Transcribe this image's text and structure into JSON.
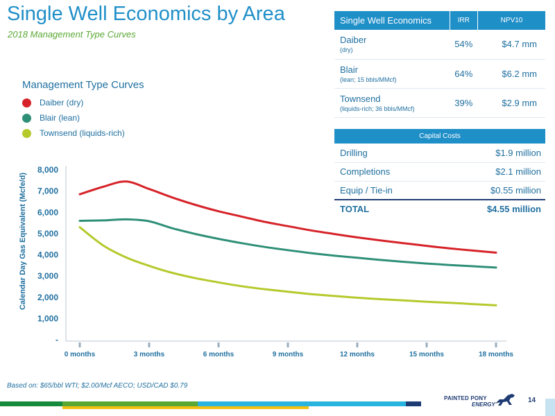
{
  "header": {
    "title": "Single Well Economics by Area",
    "subtitle": "2018 Management Type Curves"
  },
  "legend": {
    "title": "Management Type Curves",
    "items": [
      {
        "label": "Daiber (dry)",
        "color": "#d62228"
      },
      {
        "label": "Blair (lean)",
        "color": "#2e8f77"
      },
      {
        "label": "Townsend (liquids-rich)",
        "color": "#b5c92b"
      }
    ]
  },
  "economics_table": {
    "headers": [
      "Single Well Economics",
      "IRR",
      "NPV10"
    ],
    "rows": [
      {
        "area": "Daiber",
        "note": "(dry)",
        "irr": "54%",
        "npv": "$4.7 mm"
      },
      {
        "area": "Blair",
        "note": "(lean; 15 bbls/MMcf)",
        "irr": "64%",
        "npv": "$6.2 mm"
      },
      {
        "area": "Townsend",
        "note": "(liquids-rich; 36 bbls/MMcf)",
        "irr": "39%",
        "npv": "$2.9 mm"
      }
    ]
  },
  "capital_costs": {
    "header": "Capital Costs",
    "rows": [
      {
        "label": "Drilling",
        "value": "$1.9 million"
      },
      {
        "label": "Completions",
        "value": "$2.1 million"
      },
      {
        "label": "Equip / Tie-in",
        "value": "$0.55 million"
      }
    ],
    "total": {
      "label": "TOTAL",
      "value": "$4.55 million"
    }
  },
  "chart_data": {
    "type": "line",
    "title": "",
    "xlabel": "",
    "ylabel": "Calendar Day Gas Equivalent (Mcfe/d)",
    "xlim": [
      0,
      18
    ],
    "ylim": [
      0,
      8000
    ],
    "yticks": [
      0,
      1000,
      2000,
      3000,
      4000,
      5000,
      6000,
      7000,
      8000
    ],
    "ytick_labels": [
      "-",
      "1,000",
      "2,000",
      "3,000",
      "4,000",
      "5,000",
      "6,000",
      "7,000",
      "8,000"
    ],
    "xticks": [
      0,
      3,
      6,
      9,
      12,
      15,
      18
    ],
    "xtick_labels": [
      "0 months",
      "3 months",
      "6 months",
      "9 months",
      "12 months",
      "15 months",
      "18 months"
    ],
    "grid": false,
    "x": [
      0,
      1,
      2,
      3,
      4,
      5,
      6,
      7,
      8,
      9,
      10,
      11,
      12,
      13,
      14,
      15,
      16,
      17,
      18
    ],
    "series": [
      {
        "name": "Daiber (dry)",
        "color": "#d62228",
        "values": [
          6850,
          7200,
          7450,
          7100,
          6700,
          6350,
          6050,
          5800,
          5550,
          5350,
          5150,
          4980,
          4820,
          4680,
          4550,
          4420,
          4300,
          4200,
          4100
        ]
      },
      {
        "name": "Blair (lean)",
        "color": "#2e8f77",
        "values": [
          5600,
          5620,
          5670,
          5580,
          5250,
          4980,
          4750,
          4550,
          4370,
          4220,
          4080,
          3960,
          3860,
          3760,
          3670,
          3590,
          3520,
          3460,
          3400
        ]
      },
      {
        "name": "Townsend (liquids-rich)",
        "color": "#b5c92b",
        "values": [
          5300,
          4450,
          3880,
          3480,
          3150,
          2900,
          2700,
          2520,
          2380,
          2260,
          2150,
          2060,
          1980,
          1910,
          1850,
          1790,
          1740,
          1680,
          1620
        ]
      }
    ]
  },
  "footnote": "Based on: $65/bbl WTI; $2.00/Mcf AECO; USD/CAD $0.79",
  "footer": {
    "logo_line1": "PAINTED PONY",
    "logo_line2": "ENERGY",
    "page_number": "14",
    "logo_color": "#1f3b73",
    "bar_colors": [
      "#168a3c",
      "#5aa833",
      "#29b4e0",
      "#1f3b73",
      "#f4c010"
    ]
  }
}
